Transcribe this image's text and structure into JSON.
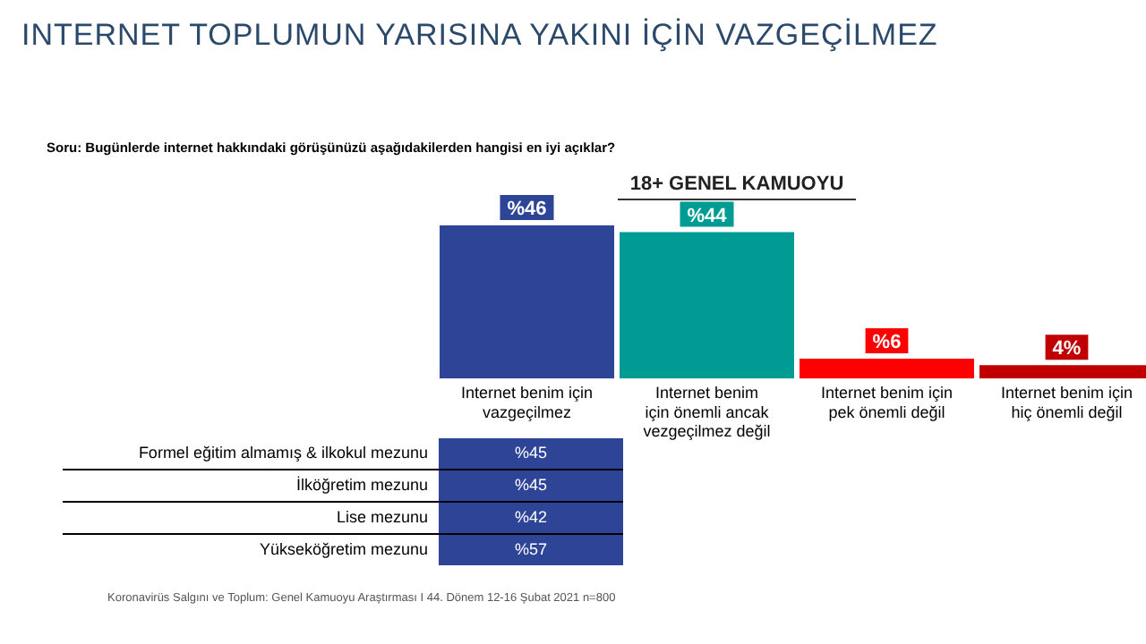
{
  "chart_data": [
    {
      "type": "bar",
      "title": "INTERNET TOPLUMUN YARISINA YAKINI İÇİN VAZGEÇİLMEZ",
      "subtitle": "Soru:  Bugünlerde internet hakkındaki  görüşünüzü aşağıdakilerden  hangisi en iyi açıklar?",
      "categories": [
        "Internet benim için\nvazgeçilmez",
        "Internet benim\niçin önemli ancak\nvezgeçilmez değil",
        "Internet benim için\npek önemli değil",
        "Internet benim için\nhiç önemli değil"
      ],
      "values": [
        46,
        44,
        6,
        4
      ],
      "colors": [
        "#2e4497",
        "#009b93",
        "#ff0000",
        "#c00000"
      ],
      "value_labels": [
        "%46",
        "%44",
        "%6",
        "4%"
      ],
      "grid": false,
      "legend": false,
      "annotations": [
        "18+ GENEL  KAMUOYU",
        "Koronavirüs Salgını ve Toplum: Genel Kamuoyu Araştırması I  44. Dönem 12-16 Şubat 2021  n=800"
      ]
    },
    {
      "type": "other",
      "categories": [
        "Formel eğitim almamış & ilkokul mezunu",
        "İlköğretim mezunu",
        "Lise mezunu",
        "Yükseköğretim mezunu"
      ],
      "values": [
        45,
        45,
        42,
        57
      ],
      "value_labels": [
        "%45",
        "%45",
        "%42",
        "%57"
      ],
      "color": "#2e4497"
    }
  ]
}
